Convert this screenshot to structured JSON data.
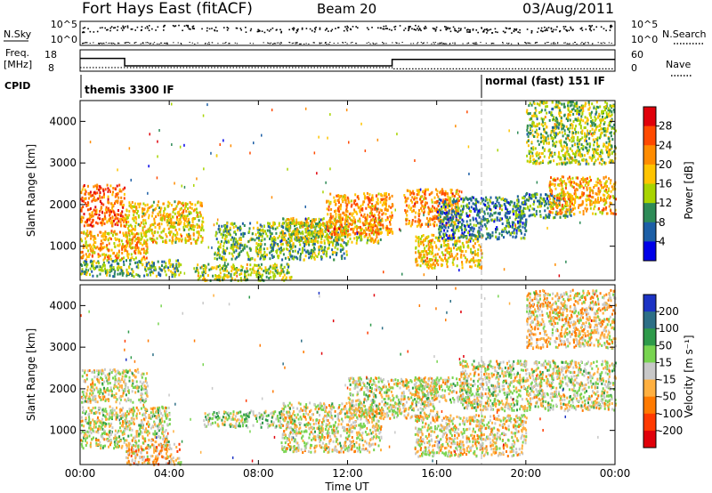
{
  "header": {
    "station": "Fort Hays East (fitACF)",
    "beam": "Beam 20",
    "date": "03/Aug/2011"
  },
  "strip_labels": {
    "nsky": "N.Sky",
    "nsearch": "N.Search",
    "freq": "Freq.",
    "freq_unit": "[MHz]",
    "nave": "Nave",
    "cpid": "CPID"
  },
  "strip_ticks": {
    "nsky_left": [
      "10^5",
      "10^0"
    ],
    "nsky_right": [
      "10^5",
      "10^0"
    ],
    "freq_left": [
      "18",
      "8"
    ],
    "freq_right": [
      "60",
      "0"
    ]
  },
  "cpid_labels": {
    "first": "themis 3300 IF",
    "second": "normal (fast) 151 IF"
  },
  "panels": {
    "ylabel": "Slant Range [km]",
    "xlabel": "Time UT",
    "x_ticks": [
      "00:00",
      "04:00",
      "08:00",
      "12:00",
      "16:00",
      "20:00",
      "00:00"
    ],
    "y_ticks": [
      "1000",
      "2000",
      "3000",
      "4000"
    ]
  },
  "colorbars": {
    "power": {
      "label": "Power [dB]",
      "ticks": [
        "28",
        "24",
        "20",
        "16",
        "12",
        "8",
        "4"
      ],
      "colors": [
        "#e0000a",
        "#ff4a00",
        "#ff8c00",
        "#ffc400",
        "#a8d400",
        "#2e8b57",
        "#1d5fa6",
        "#0000e8"
      ]
    },
    "velocity": {
      "label": "Velocity [m s⁻¹]",
      "ticks": [
        "200",
        "100",
        "50",
        "15",
        "-15",
        "-50",
        "-100",
        "-200"
      ],
      "colors": [
        "#1c33c4",
        "#2d6f86",
        "#2e9a4a",
        "#78d450",
        "#c8c8c8",
        "#ffb040",
        "#ff7a00",
        "#ff3a00",
        "#e0000a"
      ]
    }
  },
  "chart_data": {
    "type": "heatmap",
    "x_range": [
      "00:00",
      "00:00"
    ],
    "y_range_km": [
      180,
      4500
    ],
    "freq_mhz": [
      {
        "start": "00:00",
        "end": "02:00",
        "value": 14
      },
      {
        "start": "02:00",
        "end": "14:00",
        "value": 10.5
      },
      {
        "start": "14:00",
        "end": "24:00",
        "value": 13.5
      }
    ],
    "nave_transition": "14:00",
    "cpid_change": "18:00",
    "power_regions": [
      {
        "t0": 0.0,
        "t1": 2.0,
        "r0": 1500,
        "r1": 2500,
        "db": 24
      },
      {
        "t0": 0.0,
        "t1": 3.0,
        "r0": 700,
        "r1": 1400,
        "db": 20
      },
      {
        "t0": 0.0,
        "t1": 4.5,
        "r0": 300,
        "r1": 700,
        "db": 12
      },
      {
        "t0": 2.0,
        "t1": 5.5,
        "r0": 1100,
        "r1": 2100,
        "db": 18
      },
      {
        "t0": 5.0,
        "t1": 9.5,
        "r0": 200,
        "r1": 600,
        "db": 14
      },
      {
        "t0": 6.0,
        "t1": 12.0,
        "r0": 700,
        "r1": 1600,
        "db": 12
      },
      {
        "t0": 9.0,
        "t1": 13.5,
        "r0": 1100,
        "r1": 1700,
        "db": 16
      },
      {
        "t0": 11.0,
        "t1": 14.0,
        "r0": 1300,
        "r1": 2300,
        "db": 22
      },
      {
        "t0": 14.5,
        "t1": 17.0,
        "r0": 1500,
        "r1": 2400,
        "db": 22
      },
      {
        "t0": 15.0,
        "t1": 18.0,
        "r0": 500,
        "r1": 1300,
        "db": 18
      },
      {
        "t0": 16.0,
        "t1": 20.0,
        "r0": 1200,
        "r1": 2200,
        "db": 8
      },
      {
        "t0": 19.5,
        "t1": 22.0,
        "r0": 1700,
        "r1": 2300,
        "db": 10
      },
      {
        "t0": 20.0,
        "t1": 24.0,
        "r0": 3000,
        "r1": 4500,
        "db": 14
      },
      {
        "t0": 21.0,
        "t1": 24.0,
        "r0": 1800,
        "r1": 2700,
        "db": 20
      }
    ],
    "velocity_regions": [
      {
        "t0": 0.0,
        "t1": 3.0,
        "r0": 1700,
        "r1": 2500,
        "vel": 0
      },
      {
        "t0": 0.0,
        "t1": 4.0,
        "r0": 600,
        "r1": 1600,
        "vel": 0
      },
      {
        "t0": 2.0,
        "t1": 4.5,
        "r0": 200,
        "r1": 700,
        "vel": -60
      },
      {
        "t0": 5.5,
        "t1": 9.5,
        "r0": 1100,
        "r1": 1500,
        "vel": 40
      },
      {
        "t0": 9.0,
        "t1": 13.5,
        "r0": 500,
        "r1": 1700,
        "vel": -10
      },
      {
        "t0": 12.0,
        "t1": 16.0,
        "r0": 1300,
        "r1": 2300,
        "vel": 0
      },
      {
        "t0": 15.0,
        "t1": 17.5,
        "r0": 1700,
        "r1": 2300,
        "vel": 0
      },
      {
        "t0": 15.0,
        "t1": 20.0,
        "r0": 400,
        "r1": 1400,
        "vel": -20
      },
      {
        "t0": 17.0,
        "t1": 24.0,
        "r0": 1500,
        "r1": 2700,
        "vel": 0
      },
      {
        "t0": 20.0,
        "t1": 24.0,
        "r0": 3000,
        "r1": 4400,
        "vel": -40
      }
    ]
  }
}
